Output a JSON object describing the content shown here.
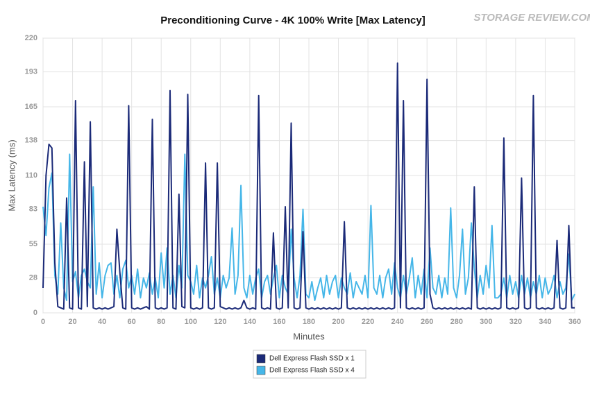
{
  "chart_data": {
    "type": "line",
    "title": "Preconditioning Curve - 4K 100% Write [Max Latency]",
    "watermark": "STORAGE REVIEW.COM",
    "xlabel": "Minutes",
    "ylabel": "Max Latency (ms)",
    "xlim": [
      0,
      360
    ],
    "ylim": [
      0,
      220
    ],
    "xticks": [
      0,
      20,
      40,
      60,
      80,
      100,
      120,
      140,
      160,
      180,
      200,
      220,
      240,
      260,
      280,
      300,
      320,
      340,
      360
    ],
    "yticks": [
      0,
      28,
      55,
      83,
      110,
      138,
      165,
      193,
      220
    ],
    "grid": true,
    "legend": "bottom",
    "x": [
      0,
      2,
      4,
      6,
      8,
      10,
      12,
      14,
      16,
      18,
      20,
      22,
      24,
      26,
      28,
      30,
      32,
      34,
      36,
      38,
      40,
      42,
      44,
      46,
      48,
      50,
      52,
      54,
      56,
      58,
      60,
      62,
      64,
      66,
      68,
      70,
      72,
      74,
      76,
      78,
      80,
      82,
      84,
      86,
      88,
      90,
      92,
      94,
      96,
      98,
      100,
      102,
      104,
      106,
      108,
      110,
      112,
      114,
      116,
      118,
      120,
      122,
      124,
      126,
      128,
      130,
      132,
      134,
      136,
      138,
      140,
      142,
      144,
      146,
      148,
      150,
      152,
      154,
      156,
      158,
      160,
      162,
      164,
      166,
      168,
      170,
      172,
      174,
      176,
      178,
      180,
      182,
      184,
      186,
      188,
      190,
      192,
      194,
      196,
      198,
      200,
      202,
      204,
      206,
      208,
      210,
      212,
      214,
      216,
      218,
      220,
      222,
      224,
      226,
      228,
      230,
      232,
      234,
      236,
      238,
      240,
      242,
      244,
      246,
      248,
      250,
      252,
      254,
      256,
      258,
      260,
      262,
      264,
      266,
      268,
      270,
      272,
      274,
      276,
      278,
      280,
      282,
      284,
      286,
      288,
      290,
      292,
      294,
      296,
      298,
      300,
      302,
      304,
      306,
      308,
      310,
      312,
      314,
      316,
      318,
      320,
      322,
      324,
      326,
      328,
      330,
      332,
      334,
      336,
      338,
      340,
      342,
      344,
      346,
      348,
      350,
      352,
      354,
      356,
      358,
      360
    ],
    "series": [
      {
        "name": "Dell Express Flash SSD x 1",
        "color": "#1b2a78",
        "values": [
          20,
          110,
          135,
          132,
          40,
          5,
          4,
          3,
          92,
          4,
          3,
          170,
          4,
          3,
          121,
          5,
          153,
          4,
          3,
          4,
          3,
          4,
          3,
          4,
          5,
          67,
          33,
          4,
          3,
          166,
          4,
          3,
          4,
          3,
          4,
          5,
          3,
          155,
          4,
          3,
          4,
          3,
          4,
          178,
          4,
          3,
          95,
          5,
          4,
          175,
          4,
          3,
          4,
          3,
          4,
          120,
          4,
          3,
          4,
          120,
          5,
          4,
          3,
          4,
          3,
          4,
          3,
          4,
          10,
          4,
          3,
          4,
          3,
          174,
          4,
          3,
          4,
          3,
          64,
          4,
          3,
          4,
          85,
          4,
          152,
          4,
          3,
          4,
          65,
          4,
          3,
          4,
          3,
          4,
          3,
          4,
          3,
          4,
          3,
          4,
          3,
          4,
          73,
          4,
          3,
          4,
          3,
          4,
          3,
          4,
          3,
          4,
          3,
          4,
          3,
          4,
          3,
          4,
          3,
          4,
          200,
          4,
          170,
          4,
          3,
          4,
          3,
          4,
          3,
          4,
          187,
          15,
          4,
          3,
          4,
          3,
          4,
          3,
          4,
          3,
          4,
          3,
          4,
          3,
          4,
          3,
          101,
          4,
          3,
          4,
          3,
          4,
          3,
          4,
          3,
          4,
          140,
          4,
          3,
          4,
          3,
          4,
          108,
          4,
          3,
          4,
          174,
          4,
          3,
          4,
          3,
          4,
          3,
          4,
          58,
          4,
          3,
          4,
          70,
          4,
          4
        ]
      },
      {
        "name": "Dell Express Flash SSD x 4",
        "color": "#45b6e8",
        "values": [
          85,
          62,
          100,
          112,
          30,
          15,
          72,
          20,
          10,
          127,
          25,
          33,
          12,
          30,
          35,
          25,
          20,
          101,
          15,
          40,
          12,
          30,
          38,
          40,
          15,
          30,
          12,
          35,
          42,
          20,
          30,
          15,
          35,
          12,
          28,
          20,
          32,
          15,
          28,
          12,
          48,
          20,
          52,
          15,
          30,
          12,
          38,
          20,
          127,
          30,
          25,
          15,
          38,
          12,
          28,
          20,
          30,
          45,
          15,
          28,
          12,
          30,
          20,
          28,
          68,
          15,
          30,
          102,
          20,
          12,
          30,
          15,
          28,
          35,
          12,
          25,
          30,
          15,
          28,
          38,
          12,
          30,
          20,
          15,
          67,
          28,
          12,
          30,
          83,
          15,
          12,
          25,
          10,
          20,
          28,
          12,
          30,
          15,
          25,
          30,
          12,
          28,
          20,
          15,
          32,
          12,
          25,
          20,
          15,
          30,
          12,
          86,
          20,
          15,
          30,
          12,
          28,
          35,
          15,
          40,
          20,
          12,
          30,
          15,
          28,
          44,
          12,
          30,
          15,
          35,
          12,
          52,
          20,
          15,
          30,
          12,
          28,
          15,
          84,
          20,
          12,
          30,
          67,
          15,
          28,
          72,
          36,
          12,
          30,
          15,
          38,
          20,
          70,
          12,
          12,
          15,
          28,
          12,
          30,
          15,
          25,
          12,
          30,
          15,
          28,
          12,
          25,
          15,
          30,
          12,
          28,
          15,
          20,
          30,
          12,
          25,
          15,
          20,
          47,
          10,
          15
        ]
      }
    ]
  }
}
